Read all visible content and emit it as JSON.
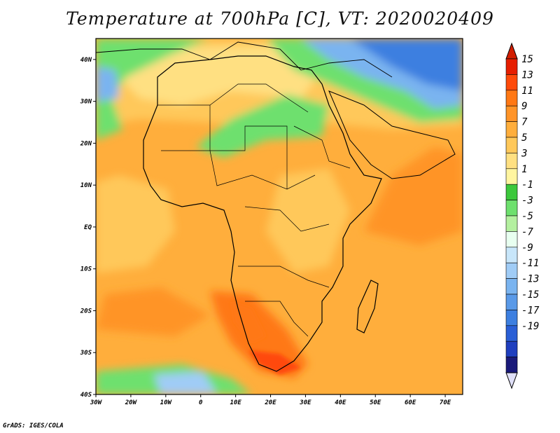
{
  "title": "Temperature at 700hPa [C], VT: 2020020409",
  "credit": "GrADS: IGES/COLA",
  "map": {
    "lon_range": [
      -30,
      75
    ],
    "lat_range": [
      -40,
      45
    ],
    "lat_ticks": [
      {
        "value": 40,
        "label": "40N"
      },
      {
        "value": 30,
        "label": "30N"
      },
      {
        "value": 20,
        "label": "20N"
      },
      {
        "value": 10,
        "label": "10N"
      },
      {
        "value": 0,
        "label": "EQ"
      },
      {
        "value": -10,
        "label": "10S"
      },
      {
        "value": -20,
        "label": "20S"
      },
      {
        "value": -30,
        "label": "30S"
      },
      {
        "value": -40,
        "label": "40S"
      }
    ],
    "lon_ticks": [
      {
        "value": -30,
        "label": "30W"
      },
      {
        "value": -20,
        "label": "20W"
      },
      {
        "value": -10,
        "label": "10W"
      },
      {
        "value": 0,
        "label": "0"
      },
      {
        "value": 10,
        "label": "10E"
      },
      {
        "value": 20,
        "label": "20E"
      },
      {
        "value": 30,
        "label": "30E"
      },
      {
        "value": 40,
        "label": "40E"
      },
      {
        "value": 50,
        "label": "50E"
      },
      {
        "value": 60,
        "label": "60E"
      },
      {
        "value": 70,
        "label": "70E"
      }
    ]
  },
  "colorbar": {
    "colors": [
      "#1a1a7a",
      "#1f3fbf",
      "#2a5fd6",
      "#3d7fe0",
      "#5a9ae8",
      "#7ab4f0",
      "#a0ccf6",
      "#c8e6fa",
      "#e8fff0",
      "#b4f0a0",
      "#6ee06e",
      "#3cc83c",
      "#fff5a0",
      "#ffe082",
      "#ffc85a",
      "#ffae3c",
      "#ff9428",
      "#ff7814",
      "#ff4a0a",
      "#e61e00"
    ],
    "labels": [
      "15",
      "13",
      "11",
      "9",
      "7",
      "5",
      "3",
      "1",
      "-1",
      "-3",
      "-5",
      "-7",
      "-9",
      "-11",
      "-13",
      "-15",
      "-17",
      "-19"
    ],
    "under_color": "#e0e0f8",
    "over_color": "#d21e00"
  }
}
